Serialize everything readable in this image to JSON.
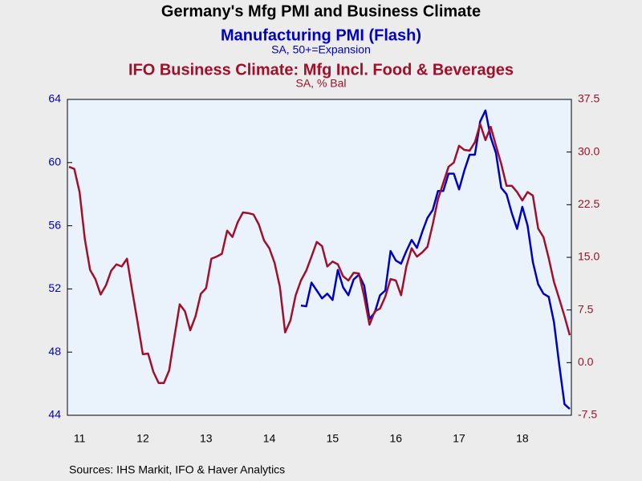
{
  "chart_data": {
    "type": "line",
    "title": "Germany's Mfg PMI and Business Climate",
    "source": "Sources:   IHS Markit, IFO & Haver Analytics",
    "categories": [
      null,
      null,
      "11",
      null,
      null,
      null,
      null,
      null,
      null,
      null,
      null,
      null,
      null,
      null,
      "12",
      null,
      null,
      null,
      null,
      null,
      null,
      null,
      null,
      null,
      null,
      null,
      "13",
      null,
      null,
      null,
      null,
      null,
      null,
      null,
      null,
      null,
      null,
      null,
      "14",
      null,
      null,
      null,
      null,
      null,
      null,
      null,
      null,
      null,
      null,
      null,
      "15",
      null,
      null,
      null,
      null,
      null,
      null,
      null,
      null,
      null,
      null,
      null,
      "16",
      null,
      null,
      null,
      null,
      null,
      null,
      null,
      null,
      null,
      null,
      null,
      "17",
      null,
      null,
      null,
      null,
      null,
      null,
      null,
      null,
      null,
      null,
      null,
      "18",
      null,
      null,
      null,
      null,
      null,
      null,
      null,
      null,
      null
    ],
    "ylim": [
      44,
      64
    ],
    "yticks": [
      44,
      48,
      52,
      56,
      60,
      64
    ],
    "y2lim": [
      -7.5,
      37.5
    ],
    "y2ticks": [
      -7.5,
      {
        "value": 0,
        "label": "0.0"
      },
      7.5,
      {
        "value": 15,
        "label": "15.0"
      },
      22.5,
      {
        "value": 30,
        "label": "30.0"
      },
      37.5
    ],
    "series": [
      {
        "name": "Manufacturing PMI (Flash)",
        "subtitle": "SA, 50+=Expansion",
        "color": "#0000c0",
        "axis": "y",
        "values": [
          null,
          null,
          null,
          null,
          null,
          null,
          null,
          null,
          null,
          null,
          null,
          null,
          null,
          null,
          null,
          null,
          null,
          null,
          null,
          null,
          null,
          null,
          null,
          null,
          null,
          null,
          null,
          null,
          null,
          null,
          null,
          null,
          null,
          null,
          null,
          null,
          null,
          null,
          null,
          null,
          null,
          null,
          null,
          null,
          50.95,
          50.9,
          52.4,
          51.9,
          51.4,
          51.7,
          51.3,
          53.2,
          52.1,
          51.6,
          52.6,
          52.9,
          52.2,
          50.1,
          50.5,
          51.6,
          51.9,
          54.4,
          53.8,
          53.6,
          54.4,
          55.1,
          54.6,
          55.6,
          56.5,
          57.0,
          58.2,
          58.2,
          59.3,
          59.3,
          58.3,
          59.5,
          60.5,
          60.5,
          62.6,
          63.3,
          61.6,
          60.6,
          58.4,
          58.0,
          56.8,
          55.8,
          57.2,
          56.0,
          53.7,
          52.3,
          51.7,
          51.5,
          49.9,
          47.2,
          44.7,
          44.4
        ]
      },
      {
        "name": "IFO Business Climate: Mfg Incl. Food & Beverages",
        "subtitle": "SA, % Bal",
        "color": "#a0102a",
        "axis": "y2",
        "values": [
          27.9,
          27.6,
          24.3,
          17.6,
          13.2,
          11.9,
          9.7,
          11.0,
          13.1,
          14.0,
          13.7,
          14.8,
          10.2,
          5.8,
          1.2,
          1.3,
          -1.3,
          -2.9,
          -2.9,
          -1.1,
          3.7,
          8.3,
          7.3,
          4.6,
          6.6,
          9.8,
          10.6,
          14.8,
          15.1,
          15.5,
          18.8,
          17.9,
          20.0,
          21.4,
          21.3,
          21.1,
          19.7,
          17.4,
          16.3,
          14.2,
          10.8,
          4.3,
          6.0,
          9.6,
          11.7,
          13.1,
          15.1,
          17.2,
          16.6,
          13.7,
          14.4,
          14.0,
          12.3,
          11.7,
          12.8,
          12.7,
          9.4,
          5.4,
          7.3,
          7.7,
          9.4,
          11.9,
          11.7,
          9.6,
          13.7,
          16.3,
          15.1,
          15.7,
          16.5,
          19.7,
          23.3,
          25.6,
          27.9,
          28.5,
          30.9,
          30.3,
          30.2,
          31.4,
          34.0,
          31.7,
          33.6,
          30.9,
          28.3,
          25.2,
          25.2,
          24.3,
          23.1,
          24.3,
          23.8,
          19.1,
          17.9,
          14.9,
          11.5,
          9.1,
          6.6,
          3.9
        ]
      }
    ]
  }
}
